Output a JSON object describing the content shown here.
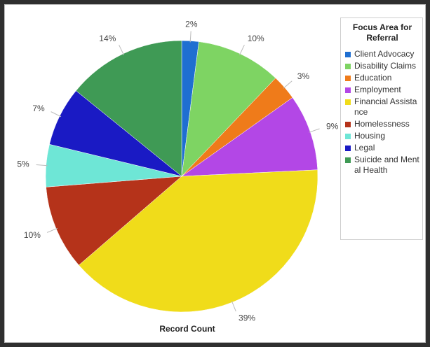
{
  "chart_data": {
    "type": "pie",
    "xlabel": "Record Count",
    "legend": {
      "title": "Focus Area for Referral",
      "placement": "right"
    },
    "slices": [
      {
        "name": "Client Advocacy",
        "value": 2,
        "label": "2%",
        "color": "#1f6fd1"
      },
      {
        "name": "Disability Claims",
        "value": 10,
        "label": "10%",
        "color": "#7ed463"
      },
      {
        "name": "Education",
        "value": 3,
        "label": "3%",
        "color": "#ef7b1a"
      },
      {
        "name": "Employment",
        "value": 9,
        "label": "9%",
        "color": "#b347e6"
      },
      {
        "name": "Financial Assistance",
        "value": 39,
        "label": "39%",
        "color": "#f0dc1a"
      },
      {
        "name": "Homelessness",
        "value": 10,
        "label": "10%",
        "color": "#b5331a"
      },
      {
        "name": "Housing",
        "value": 5,
        "label": "5%",
        "color": "#6ee6d6"
      },
      {
        "name": "Legal",
        "value": 7,
        "label": "7%",
        "color": "#1a1ac4"
      },
      {
        "name": "Suicide and Mental Health",
        "value": 14,
        "label": "14%",
        "color": "#3f9a55"
      }
    ]
  }
}
